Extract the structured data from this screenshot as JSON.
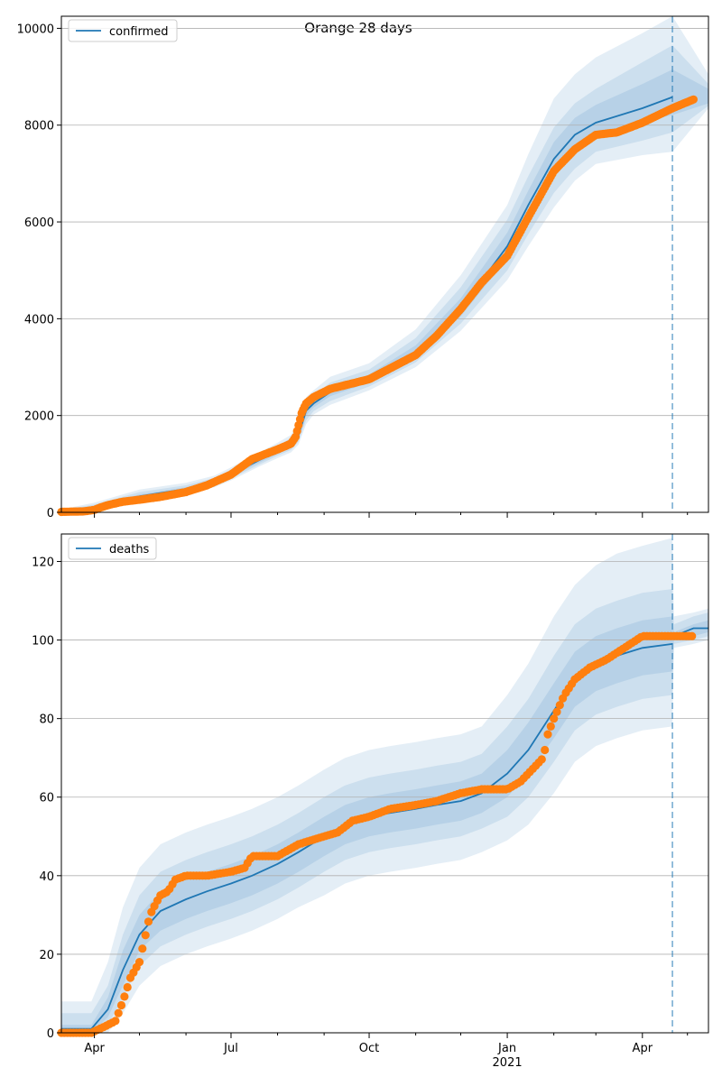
{
  "figure": {
    "title": "Orange 28 days"
  },
  "chart_data": [
    {
      "type": "line",
      "legend": {
        "label": "confirmed",
        "placement": "top-left"
      },
      "ylim": [
        0,
        10250
      ],
      "yticks": [
        0,
        2000,
        4000,
        6000,
        8000,
        10000
      ],
      "grid": "y",
      "xrange": [
        "2020-03-10",
        "2021-05-15"
      ],
      "xticks_major": [
        {
          "date": "2020-04-01",
          "label": "Apr",
          "sublabel": ""
        },
        {
          "date": "2020-07-01",
          "label": "Jul",
          "sublabel": ""
        },
        {
          "date": "2020-10-01",
          "label": "Oct",
          "sublabel": ""
        },
        {
          "date": "2021-01-01",
          "label": "Jan",
          "sublabel": "2021"
        },
        {
          "date": "2021-04-01",
          "label": "Apr",
          "sublabel": ""
        }
      ],
      "xticks_minor": [
        "2020-05-01",
        "2020-06-01",
        "2020-08-01",
        "2020-09-01",
        "2020-11-01",
        "2020-12-01",
        "2021-02-01",
        "2021-03-01",
        "2021-05-01"
      ],
      "forecast_start": "2021-04-21",
      "colors": {
        "line": "#1f77b4",
        "band": "#1f77b4",
        "points": "#ff7f0e",
        "grid": "#b0b0b0"
      },
      "model": {
        "dates": [
          "2020-03-10",
          "2020-04-01",
          "2020-05-01",
          "2020-06-01",
          "2020-06-20",
          "2020-07-01",
          "2020-07-20",
          "2020-08-01",
          "2020-08-10",
          "2020-08-15",
          "2020-08-20",
          "2020-08-25",
          "2020-09-05",
          "2020-10-01",
          "2020-11-01",
          "2020-12-01",
          "2021-01-01",
          "2021-01-15",
          "2021-02-01",
          "2021-02-15",
          "2021-03-01",
          "2021-04-01",
          "2021-04-21",
          "2021-05-15"
        ],
        "median": [
          20,
          100,
          330,
          480,
          620,
          780,
          1080,
          1260,
          1400,
          1600,
          2100,
          2250,
          2480,
          2750,
          3300,
          4200,
          5500,
          6350,
          7300,
          7800,
          8050,
          8350,
          8580,
          8550
        ],
        "q25": [
          10,
          80,
          300,
          450,
          580,
          740,
          1030,
          1210,
          1340,
          1520,
          2000,
          2170,
          2400,
          2680,
          3200,
          4050,
          5250,
          6050,
          6950,
          7450,
          7800,
          8060,
          8210,
          8450
        ],
        "q75": [
          30,
          130,
          370,
          520,
          670,
          830,
          1130,
          1320,
          1470,
          1700,
          2200,
          2340,
          2580,
          2850,
          3450,
          4420,
          5780,
          6650,
          7650,
          8150,
          8420,
          8850,
          9150,
          8750
        ],
        "q10": [
          5,
          60,
          280,
          420,
          550,
          700,
          990,
          1170,
          1290,
          1460,
          1900,
          2090,
          2300,
          2600,
          3100,
          3900,
          5000,
          5750,
          6600,
          7100,
          7450,
          7680,
          7850,
          8400
        ],
        "q90": [
          45,
          160,
          420,
          560,
          710,
          880,
          1180,
          1370,
          1540,
          1800,
          2280,
          2420,
          2680,
          2950,
          3600,
          4650,
          6050,
          6950,
          7950,
          8450,
          8750,
          9300,
          9650,
          8850
        ],
        "q2": [
          0,
          40,
          260,
          390,
          520,
          660,
          950,
          1120,
          1240,
          1400,
          1820,
          2020,
          2220,
          2520,
          3000,
          3750,
          4800,
          5500,
          6300,
          6850,
          7200,
          7380,
          7450,
          8350
        ],
        "q98": [
          60,
          200,
          470,
          610,
          760,
          930,
          1240,
          1440,
          1600,
          1900,
          2380,
          2520,
          2800,
          3080,
          3780,
          4900,
          6350,
          7400,
          8550,
          9050,
          9400,
          9900,
          10250,
          9050
        ]
      },
      "observed": {
        "dates": [
          "2020-03-10",
          "2020-03-25",
          "2020-04-01",
          "2020-04-05",
          "2020-04-10",
          "2020-04-20",
          "2020-05-01",
          "2020-05-15",
          "2020-06-01",
          "2020-06-15",
          "2020-07-01",
          "2020-07-15",
          "2020-08-01",
          "2020-08-10",
          "2020-08-13",
          "2020-08-15",
          "2020-08-17",
          "2020-08-20",
          "2020-08-25",
          "2020-09-05",
          "2020-10-01",
          "2020-11-01",
          "2020-11-15",
          "2020-12-01",
          "2020-12-15",
          "2021-01-01",
          "2021-01-15",
          "2021-02-01",
          "2021-02-15",
          "2021-03-01",
          "2021-03-15",
          "2021-04-01",
          "2021-04-21",
          "2021-05-05"
        ],
        "values": [
          10,
          20,
          50,
          100,
          150,
          220,
          260,
          320,
          420,
          560,
          780,
          1100,
          1300,
          1420,
          1560,
          1800,
          2050,
          2250,
          2380,
          2550,
          2750,
          3250,
          3650,
          4200,
          4750,
          5300,
          6100,
          7050,
          7500,
          7800,
          7850,
          8050,
          8350,
          8530
        ]
      }
    },
    {
      "type": "line",
      "legend": {
        "label": "deaths",
        "placement": "top-left"
      },
      "ylim": [
        0,
        127
      ],
      "yticks": [
        0,
        20,
        40,
        60,
        80,
        100,
        120
      ],
      "grid": "y",
      "xrange": [
        "2020-03-10",
        "2021-05-15"
      ],
      "xticks_major": [
        {
          "date": "2020-04-01",
          "label": "Apr",
          "sublabel": ""
        },
        {
          "date": "2020-07-01",
          "label": "Jul",
          "sublabel": ""
        },
        {
          "date": "2020-10-01",
          "label": "Oct",
          "sublabel": ""
        },
        {
          "date": "2021-01-01",
          "label": "Jan",
          "sublabel": "2021"
        },
        {
          "date": "2021-04-01",
          "label": "Apr",
          "sublabel": ""
        }
      ],
      "xticks_minor": [
        "2020-05-01",
        "2020-06-01",
        "2020-08-01",
        "2020-09-01",
        "2020-11-01",
        "2020-12-01",
        "2021-02-01",
        "2021-03-01",
        "2021-05-01"
      ],
      "forecast_start": "2021-04-21",
      "colors": {
        "line": "#1f77b4",
        "band": "#1f77b4",
        "points": "#ff7f0e",
        "grid": "#b0b0b0"
      },
      "model": {
        "dates": [
          "2020-03-10",
          "2020-03-30",
          "2020-04-10",
          "2020-04-20",
          "2020-05-01",
          "2020-05-15",
          "2020-06-01",
          "2020-06-15",
          "2020-07-01",
          "2020-07-15",
          "2020-08-01",
          "2020-08-15",
          "2020-09-01",
          "2020-09-15",
          "2020-10-01",
          "2020-10-15",
          "2020-11-01",
          "2020-11-15",
          "2020-12-01",
          "2020-12-15",
          "2021-01-01",
          "2021-01-15",
          "2021-02-01",
          "2021-02-15",
          "2021-03-01",
          "2021-03-15",
          "2021-04-01",
          "2021-04-21",
          "2021-04-22",
          "2021-05-05",
          "2021-05-15"
        ],
        "median": [
          1,
          1,
          6,
          16,
          25,
          31,
          34,
          36,
          38,
          40,
          43,
          46,
          50,
          53,
          55,
          56,
          57,
          58,
          59,
          61,
          66,
          72,
          82,
          90,
          94,
          96,
          98,
          99,
          101,
          103,
          103
        ],
        "q25": [
          0,
          0,
          4,
          12,
          21,
          26,
          29,
          31,
          33,
          35,
          38,
          41,
          45,
          48,
          50,
          51,
          52,
          53,
          54,
          56,
          60,
          66,
          75,
          83,
          87,
          89,
          91,
          92,
          100,
          101,
          102
        ],
        "q75": [
          2,
          2,
          9,
          21,
          30,
          36,
          39,
          41,
          43,
          45,
          48,
          51,
          55,
          58,
          60,
          61,
          62,
          63,
          64,
          66,
          72,
          79,
          89,
          97,
          101,
          103,
          105,
          106,
          102,
          104,
          105
        ],
        "q10": [
          0,
          0,
          2,
          9,
          17,
          22,
          25,
          27,
          29,
          31,
          34,
          37,
          41,
          44,
          46,
          47,
          48,
          49,
          50,
          52,
          55,
          60,
          69,
          77,
          81,
          83,
          85,
          86,
          99,
          100,
          101
        ],
        "q90": [
          5,
          5,
          12,
          25,
          35,
          41,
          44,
          46,
          48,
          50,
          53,
          56,
          60,
          63,
          65,
          66,
          67,
          68,
          69,
          71,
          78,
          85,
          96,
          104,
          108,
          110,
          112,
          113,
          104,
          106,
          107
        ],
        "q2": [
          0,
          0,
          0,
          5,
          12,
          17,
          20,
          22,
          24,
          26,
          29,
          32,
          35,
          38,
          40,
          41,
          42,
          43,
          44,
          46,
          49,
          53,
          61,
          69,
          73,
          75,
          77,
          78,
          98,
          99,
          100
        ],
        "q98": [
          8,
          8,
          18,
          32,
          42,
          48,
          51,
          53,
          55,
          57,
          60,
          63,
          67,
          70,
          72,
          73,
          74,
          75,
          76,
          78,
          86,
          94,
          106,
          114,
          119,
          122,
          124,
          126,
          106,
          107,
          108
        ]
      },
      "observed": {
        "dates": [
          "2020-03-10",
          "2020-03-30",
          "2020-04-10",
          "2020-04-15",
          "2020-04-20",
          "2020-04-25",
          "2020-05-01",
          "2020-05-08",
          "2020-05-12",
          "2020-05-15",
          "2020-05-20",
          "2020-05-25",
          "2020-06-01",
          "2020-06-15",
          "2020-07-01",
          "2020-07-10",
          "2020-07-15",
          "2020-08-01",
          "2020-08-15",
          "2020-09-01",
          "2020-09-10",
          "2020-09-20",
          "2020-10-01",
          "2020-10-15",
          "2020-11-01",
          "2020-11-15",
          "2020-12-01",
          "2020-12-15",
          "2021-01-01",
          "2021-01-10",
          "2021-01-20",
          "2021-01-25",
          "2021-01-28",
          "2021-02-01",
          "2021-02-08",
          "2021-02-15",
          "2021-02-25",
          "2021-03-08",
          "2021-03-20",
          "2021-04-01",
          "2021-04-21",
          "2021-05-05"
        ],
        "values": [
          0,
          0,
          2,
          3,
          8,
          14,
          18,
          30,
          33,
          35,
          36,
          39,
          40,
          40,
          41,
          42,
          45,
          45,
          48,
          50,
          51,
          54,
          55,
          57,
          58,
          59,
          61,
          62,
          62,
          64,
          68,
          70,
          76,
          80,
          86,
          90,
          93,
          95,
          98,
          101,
          101,
          101
        ]
      }
    }
  ]
}
